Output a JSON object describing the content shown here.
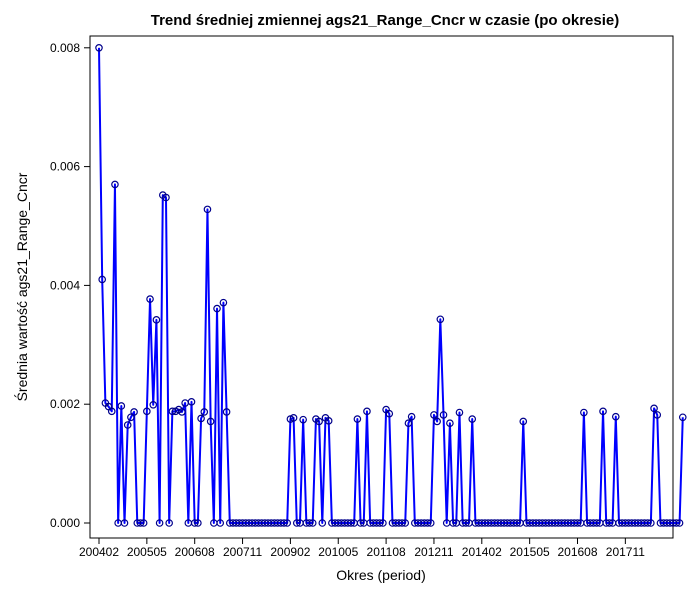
{
  "chart_data": {
    "type": "line",
    "title": "Trend średniej zmiennej ags21_Range_Cncr w czasie (po okresie)",
    "xlabel": "Okres (period)",
    "ylabel": "Średnia wartość ags21_Range_Cncr",
    "x_tick_labels": [
      "200402",
      "200505",
      "200608",
      "200711",
      "200902",
      "201005",
      "201108",
      "201211",
      "201402",
      "201505",
      "201608",
      "201711"
    ],
    "y_tick_labels": [
      "0.000",
      "0.002",
      "0.004",
      "0.006",
      "0.008"
    ],
    "ylim": [
      0,
      0.008
    ],
    "start_period": "200402",
    "grid": false,
    "legend": "none",
    "colors": {
      "line": "#0000ff",
      "marker_edge": "#00008b",
      "axis": "#000000"
    },
    "series": [
      {
        "values": [
          0.008,
          0.0041,
          0.00202,
          0.00196,
          0.00188,
          0.0057,
          0.0,
          0.00197,
          0.0,
          0.00165,
          0.00178,
          0.00187,
          0.0,
          0.0,
          0.0,
          0.00188,
          0.00377,
          0.00199,
          0.00342,
          0.0,
          0.00552,
          0.00548,
          0.0,
          0.00188,
          0.00188,
          0.00191,
          0.00187,
          0.00202,
          0.0,
          0.00204,
          0.0,
          0.0,
          0.00176,
          0.00187,
          0.00528,
          0.00171,
          0.0,
          0.00361,
          0.0,
          0.00371,
          0.00187,
          0.0,
          0.0,
          0.0,
          0.0,
          0.0,
          0.0,
          0.0,
          0.0,
          0.0,
          0.0,
          0.0,
          0.0,
          0.0,
          0.0,
          0.0,
          0.0,
          0.0,
          0.0,
          0.0,
          0.00175,
          0.00177,
          0.0,
          0.0,
          0.00174,
          0.0,
          0.0,
          0.0,
          0.00175,
          0.00171,
          0.0,
          0.00177,
          0.00172,
          0.0,
          0.0,
          0.0,
          0.0,
          0.0,
          0.0,
          0.0,
          0.0,
          0.00175,
          0.0,
          0.0,
          0.00188,
          0.0,
          0.0,
          0.0,
          0.0,
          0.0,
          0.00191,
          0.00184,
          0.0,
          0.0,
          0.0,
          0.0,
          0.0,
          0.00168,
          0.00179,
          0.0,
          0.0,
          0.0,
          0.0,
          0.0,
          0.0,
          0.00182,
          0.00171,
          0.00343,
          0.00182,
          0.0,
          0.00168,
          0.0,
          0.0,
          0.00186,
          0.0,
          0.0,
          0.0,
          0.00175,
          0.0,
          0.0,
          0.0,
          0.0,
          0.0,
          0.0,
          0.0,
          0.0,
          0.0,
          0.0,
          0.0,
          0.0,
          0.0,
          0.0,
          0.0,
          0.00171,
          0.0,
          0.0,
          0.0,
          0.0,
          0.0,
          0.0,
          0.0,
          0.0,
          0.0,
          0.0,
          0.0,
          0.0,
          0.0,
          0.0,
          0.0,
          0.0,
          0.0,
          0.0,
          0.00186,
          0.0,
          0.0,
          0.0,
          0.0,
          0.0,
          0.00188,
          0.0,
          0.0,
          0.0,
          0.00179,
          0.0,
          0.0,
          0.0,
          0.0,
          0.0,
          0.0,
          0.0,
          0.0,
          0.0,
          0.0,
          0.0,
          0.00193,
          0.00182,
          0.0,
          0.0,
          0.0,
          0.0,
          0.0,
          0.0,
          0.0,
          0.00178
        ]
      }
    ]
  }
}
